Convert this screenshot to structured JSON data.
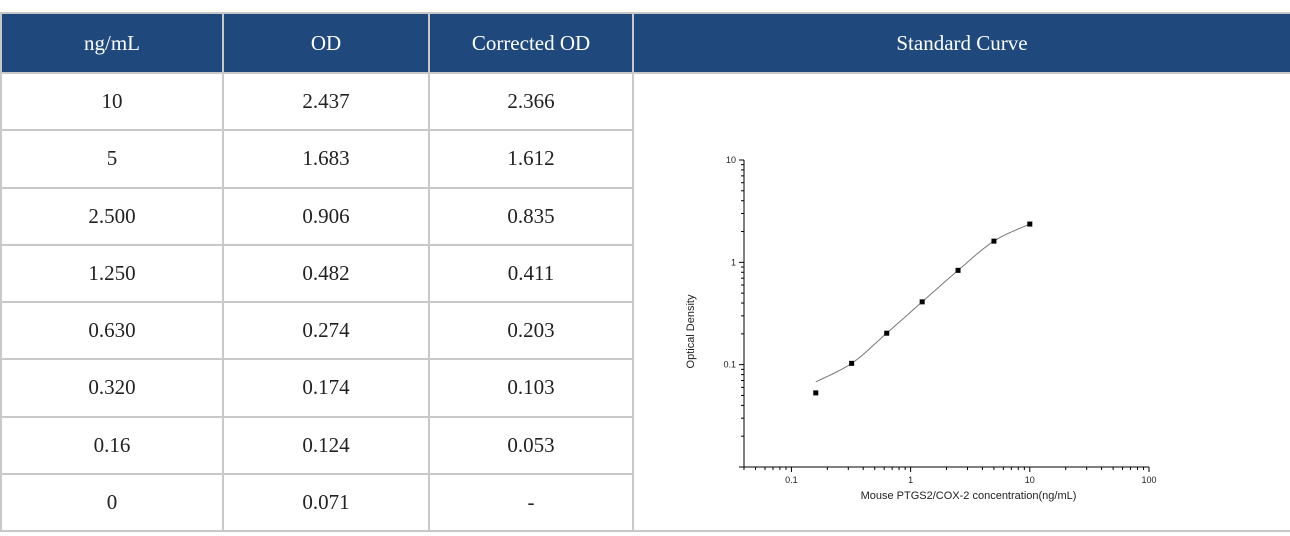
{
  "table": {
    "headers": [
      "ng/mL",
      "OD",
      "Corrected OD",
      "Standard Curve"
    ],
    "rows": [
      [
        "10",
        "2.437",
        "2.366"
      ],
      [
        "5",
        "1.683",
        "1.612"
      ],
      [
        "2.500",
        "0.906",
        "0.835"
      ],
      [
        "1.250",
        "0.482",
        "0.411"
      ],
      [
        "0.630",
        "0.274",
        "0.203"
      ],
      [
        "0.320",
        "0.174",
        "0.103"
      ],
      [
        "0.16",
        "0.124",
        "0.053"
      ],
      [
        "0",
        "0.071",
        "-"
      ]
    ]
  },
  "colors": {
    "header_bg": "#1f497d",
    "header_text": "#ffffff",
    "border": "#c8c8c8"
  },
  "chart_data": {
    "type": "scatter",
    "xlabel": "Mouse PTGS2/COX-2 concentration(ng/mL)",
    "ylabel": "Optical Density",
    "x_scale": "log",
    "y_scale": "log",
    "xlim": [
      0.04,
      100
    ],
    "ylim": [
      0.01,
      10
    ],
    "x_ticks": [
      "0.1",
      "1",
      "10",
      "100"
    ],
    "y_ticks": [
      "0.1",
      "1",
      "10"
    ],
    "grid": false,
    "series": [
      {
        "x": [
          10,
          5,
          2.5,
          1.25,
          0.63,
          0.32,
          0.16
        ],
        "y": [
          2.366,
          1.612,
          0.835,
          0.411,
          0.203,
          0.103,
          0.053
        ]
      }
    ],
    "fit_curve": true
  }
}
